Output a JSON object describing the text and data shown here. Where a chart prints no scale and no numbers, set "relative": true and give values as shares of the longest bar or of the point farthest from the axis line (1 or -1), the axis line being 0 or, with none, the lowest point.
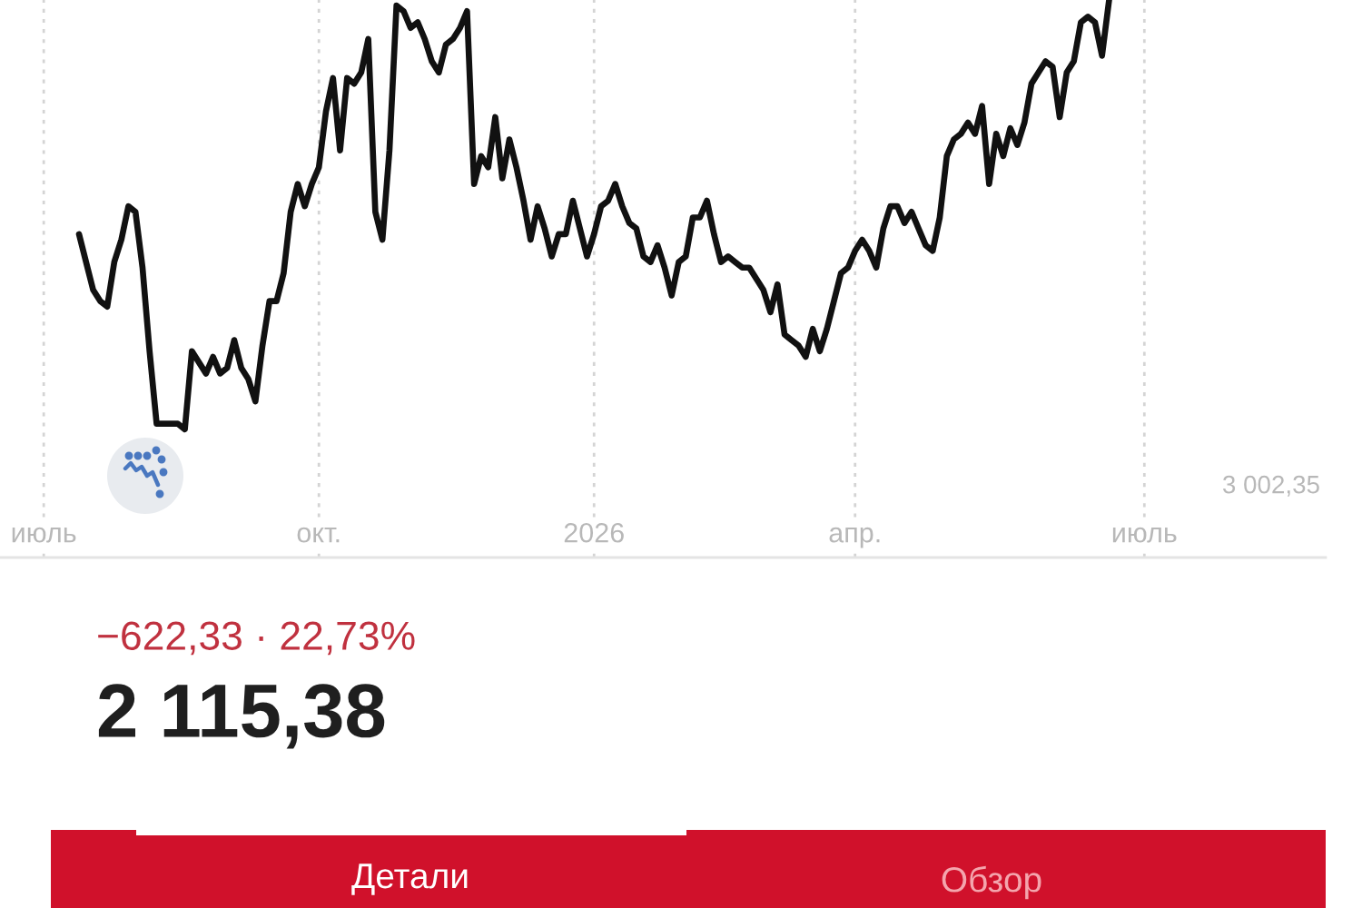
{
  "chart_data": {
    "type": "line",
    "title": "2 115,38",
    "subtitle": "−622,33 · 22,73%",
    "relative": true,
    "grid": "x",
    "categories": [
      "июль",
      null,
      null,
      null,
      null,
      null,
      null,
      null,
      null,
      null,
      null,
      null,
      null,
      null,
      null,
      null,
      null,
      null,
      null,
      null,
      null,
      null,
      null,
      null,
      null,
      null,
      null,
      null,
      null,
      null,
      null,
      null,
      null,
      null,
      null,
      null,
      null,
      null,
      null,
      "окт.",
      null,
      null,
      null,
      null,
      null,
      null,
      null,
      null,
      null,
      null,
      null,
      null,
      null,
      null,
      null,
      null,
      null,
      null,
      null,
      null,
      null,
      null,
      null,
      null,
      null,
      null,
      null,
      null,
      null,
      null,
      null,
      null,
      null,
      null,
      null,
      null,
      null,
      null,
      "2026",
      null,
      null,
      null,
      null,
      null,
      null,
      null,
      null,
      null,
      null,
      null,
      null,
      null,
      null,
      null,
      null,
      null,
      null,
      null,
      null,
      null,
      null,
      null,
      null,
      null,
      null,
      null,
      null,
      null,
      null,
      null,
      null,
      null,
      null,
      null,
      null,
      "апр.",
      null,
      null,
      null,
      null,
      null,
      null,
      null,
      null,
      null,
      null,
      null,
      null,
      null,
      null,
      null,
      null,
      null,
      null,
      null,
      null,
      null,
      null,
      null,
      null,
      null,
      null,
      null,
      null,
      null,
      null,
      null,
      null,
      null,
      null,
      null,
      null,
      null,
      null,
      null,
      null,
      "июль"
    ],
    "series": [
      {
        "color": "#111111",
        "values": [
          null,
          null,
          null,
          null,
          null,
          0.58,
          0.53,
          0.48,
          0.46,
          0.45,
          0.53,
          0.57,
          0.63,
          0.62,
          0.52,
          0.37,
          0.24,
          0.24,
          0.24,
          0.24,
          0.23,
          0.37,
          0.35,
          0.33,
          0.36,
          0.33,
          0.34,
          0.39,
          0.34,
          0.32,
          0.28,
          0.38,
          0.46,
          0.46,
          0.51,
          0.62,
          0.67,
          0.63,
          0.67,
          0.7,
          0.8,
          0.86,
          0.73,
          0.86,
          0.85,
          0.87,
          0.93,
          0.62,
          0.57,
          0.73,
          0.99,
          0.98,
          0.95,
          0.96,
          0.93,
          0.89,
          0.87,
          0.92,
          0.93,
          0.95,
          0.98,
          0.67,
          0.72,
          0.7,
          0.79,
          0.68,
          0.75,
          0.7,
          0.64,
          0.57,
          0.63,
          0.59,
          0.54,
          0.58,
          0.58,
          0.64,
          0.59,
          0.54,
          0.58,
          0.63,
          0.64,
          0.67,
          0.63,
          0.6,
          0.59,
          0.54,
          0.53,
          0.56,
          0.52,
          0.47,
          0.53,
          0.54,
          0.61,
          0.61,
          0.64,
          0.58,
          0.53,
          0.54,
          0.53,
          0.52,
          0.52,
          0.5,
          0.48,
          0.44,
          0.49,
          0.4,
          0.39,
          0.38,
          0.36,
          0.41,
          0.37,
          0.41,
          0.46,
          0.51,
          0.52,
          0.55,
          0.57,
          0.55,
          0.52,
          0.59,
          0.63,
          0.63,
          0.6,
          0.62,
          0.59,
          0.56,
          0.55,
          0.61,
          0.72,
          0.75,
          0.76,
          0.78,
          0.76,
          0.81,
          0.67,
          0.76,
          0.72,
          0.77,
          0.74,
          0.78,
          0.85,
          0.87,
          0.89,
          0.88,
          0.79,
          0.87,
          0.89,
          0.96,
          0.97,
          0.96,
          0.9,
          1.0,
          null,
          null,
          null,
          null,
          null
        ]
      }
    ],
    "annotations": [
      "3 002,35",
      "Детали",
      "Обзор"
    ]
  }
}
